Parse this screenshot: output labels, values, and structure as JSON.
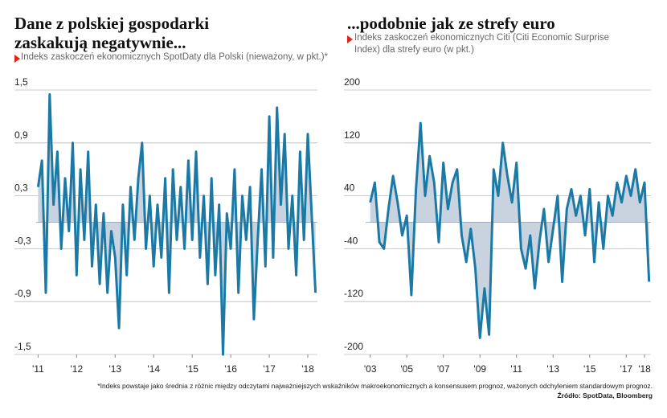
{
  "chart_data": [
    {
      "type": "line",
      "title": "Dane z polskiej gospodarki zaskakują negatywnie...",
      "subtitle": "Indeks zaskoczeń ekonomicznych SpotDaty dla Polski (nieważony, w pkt.)*",
      "color": "#1b7aa5",
      "fill": "#c9d3e0",
      "x": [
        2011.0,
        2011.1,
        2011.2,
        2011.3,
        2011.4,
        2011.5,
        2011.6,
        2011.7,
        2011.8,
        2011.9,
        2012.0,
        2012.1,
        2012.2,
        2012.3,
        2012.4,
        2012.5,
        2012.6,
        2012.7,
        2012.8,
        2012.9,
        2013.0,
        2013.1,
        2013.2,
        2013.3,
        2013.4,
        2013.5,
        2013.6,
        2013.7,
        2013.8,
        2013.9,
        2014.0,
        2014.1,
        2014.2,
        2014.3,
        2014.4,
        2014.5,
        2014.6,
        2014.7,
        2014.8,
        2014.9,
        2015.0,
        2015.1,
        2015.2,
        2015.3,
        2015.4,
        2015.5,
        2015.6,
        2015.7,
        2015.8,
        2015.9,
        2016.0,
        2016.1,
        2016.2,
        2016.3,
        2016.4,
        2016.5,
        2016.6,
        2016.7,
        2016.8,
        2016.9,
        2017.0,
        2017.1,
        2017.2,
        2017.3,
        2017.4,
        2017.5,
        2017.6,
        2017.7,
        2017.8,
        2017.9,
        2018.0,
        2018.1,
        2018.2
      ],
      "values": [
        0.4,
        0.7,
        -0.8,
        1.45,
        0.2,
        0.8,
        -0.3,
        0.5,
        -0.1,
        0.9,
        -0.6,
        0.6,
        -0.2,
        0.8,
        -0.5,
        0.2,
        -0.7,
        0.1,
        -0.8,
        -0.1,
        -0.4,
        -1.2,
        0.2,
        -0.6,
        0.4,
        -0.2,
        0.5,
        0.9,
        -0.3,
        0.3,
        -0.5,
        0.2,
        -0.4,
        0.5,
        -0.8,
        0.6,
        -0.2,
        0.4,
        -0.3,
        0.7,
        -0.2,
        0.8,
        -0.4,
        0.3,
        -0.7,
        0.5,
        -0.6,
        0.2,
        -1.5,
        0.1,
        -0.3,
        0.6,
        -0.8,
        0.3,
        -0.2,
        0.4,
        -1.1,
        -0.2,
        0.6,
        -0.5,
        1.2,
        -0.4,
        1.3,
        0.2,
        1.0,
        -0.3,
        0.3,
        -0.6,
        0.8,
        -0.2,
        1.0,
        0.1,
        -0.8
      ],
      "xlim": [
        2010.95,
        2018.25
      ],
      "xticks": [
        {
          "value": 2011,
          "label": "'11"
        },
        {
          "value": 2012,
          "label": "'12"
        },
        {
          "value": 2013,
          "label": "'13"
        },
        {
          "value": 2014,
          "label": "'14"
        },
        {
          "value": 2015,
          "label": "'15"
        },
        {
          "value": 2016,
          "label": "'16"
        },
        {
          "value": 2017,
          "label": "'17"
        },
        {
          "value": 2018,
          "label": "'18"
        }
      ],
      "ylim": [
        -1.5,
        1.5
      ],
      "yticks": [
        {
          "value": 1.5,
          "label": "1,5"
        },
        {
          "value": 0.9,
          "label": "0,9"
        },
        {
          "value": 0.3,
          "label": "0,3"
        },
        {
          "value": -0.3,
          "label": "-0,3"
        },
        {
          "value": -0.9,
          "label": "-0,9"
        },
        {
          "value": -1.5,
          "label": "-1,5"
        }
      ],
      "grid": true
    },
    {
      "type": "line",
      "title": "...podobnie jak ze strefy euro",
      "subtitle": "Indeks zaskoczeń ekonomicznych Citi (Citi Economic Surprise Index) dla strefy euro (w pkt.)",
      "color": "#1b7aa5",
      "fill": "#c9d3e0",
      "x": [
        2003.0,
        2003.25,
        2003.5,
        2003.75,
        2004.0,
        2004.25,
        2004.5,
        2004.75,
        2005.0,
        2005.25,
        2005.5,
        2005.75,
        2006.0,
        2006.25,
        2006.5,
        2006.75,
        2007.0,
        2007.25,
        2007.5,
        2007.75,
        2008.0,
        2008.25,
        2008.5,
        2008.75,
        2009.0,
        2009.25,
        2009.5,
        2009.75,
        2010.0,
        2010.25,
        2010.5,
        2010.75,
        2011.0,
        2011.25,
        2011.5,
        2011.75,
        2012.0,
        2012.25,
        2012.5,
        2012.75,
        2013.0,
        2013.25,
        2013.5,
        2013.75,
        2014.0,
        2014.25,
        2014.5,
        2014.75,
        2015.0,
        2015.25,
        2015.5,
        2015.75,
        2016.0,
        2016.25,
        2016.5,
        2016.75,
        2017.0,
        2017.25,
        2017.5,
        2017.75,
        2018.0,
        2018.25
      ],
      "values": [
        30,
        60,
        -30,
        -40,
        20,
        70,
        30,
        -20,
        10,
        -110,
        50,
        150,
        40,
        100,
        60,
        -30,
        90,
        20,
        60,
        80,
        -20,
        -60,
        -10,
        -70,
        -175,
        -100,
        -170,
        80,
        40,
        120,
        70,
        30,
        90,
        -40,
        -70,
        -20,
        -100,
        -30,
        20,
        -60,
        -10,
        40,
        -90,
        20,
        50,
        10,
        40,
        -20,
        50,
        -60,
        30,
        -40,
        40,
        10,
        60,
        30,
        70,
        40,
        80,
        30,
        60,
        -90
      ],
      "xlim": [
        2002.75,
        2018.35
      ],
      "xticks": [
        {
          "value": 2003,
          "label": "'03"
        },
        {
          "value": 2005,
          "label": "'05"
        },
        {
          "value": 2007,
          "label": "'07"
        },
        {
          "value": 2009,
          "label": "'09"
        },
        {
          "value": 2011,
          "label": "'11"
        },
        {
          "value": 2013,
          "label": "'13"
        },
        {
          "value": 2015,
          "label": "'15"
        },
        {
          "value": 2017,
          "label": "'17"
        },
        {
          "value": 2018,
          "label": "'18"
        }
      ],
      "ylim": [
        -200,
        200
      ],
      "yticks": [
        200,
        120,
        40,
        -40,
        -120,
        -200
      ],
      "grid": true
    }
  ],
  "footnote": "*Indeks powstaje jako średnia z różnic między odczytami najważniejszych wskaźników makroekonomicznych a konsensusem prognoz, ważonych odchyleniem standardowym prognoz.",
  "source": "Źródło: SpotData, Bloomberg"
}
